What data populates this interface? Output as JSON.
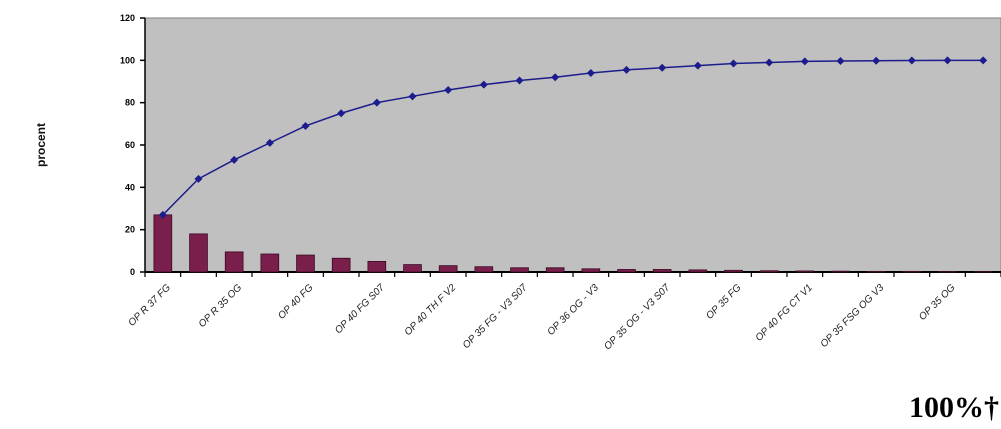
{
  "chart_data": {
    "type": "bar",
    "title": "",
    "ylabel": "procent",
    "xlabel": "",
    "ylim": [
      0,
      120
    ],
    "yticks": [
      0,
      20,
      40,
      60,
      80,
      100,
      120
    ],
    "grid": false,
    "categories": [
      "OP R 37 FG",
      "",
      "OP R 35 OG",
      "",
      "OP 40 FG",
      "",
      "OP 40 FG S07",
      "",
      "OP 40 TH F V2",
      "",
      "OP 35 FG - V3 S07",
      "",
      "OP 36 OG - V3",
      "",
      "OP 35 OG - V3 S07",
      "",
      "OP 35 FG",
      "",
      "OP 40 FG CT V1",
      "",
      "OP 35 FSG OG V3",
      "",
      "OP 35 OG",
      ""
    ],
    "series": [
      {
        "type": "bar",
        "values": [
          27,
          18,
          9.5,
          8.5,
          8,
          6.5,
          5,
          3.5,
          3,
          2.5,
          2,
          2,
          1.5,
          1.2,
          1.2,
          1,
          0.8,
          0.6,
          0.5,
          0.4,
          0.3,
          0.3,
          0.2,
          0.2
        ],
        "color": "#7a1e4c"
      },
      {
        "type": "line",
        "values": [
          27,
          44,
          53,
          61,
          69,
          75,
          80,
          83,
          86,
          88.5,
          90.5,
          92,
          94,
          95.5,
          96.5,
          97.5,
          98.5,
          99,
          99.5,
          99.7,
          99.8,
          99.9,
          100,
          100
        ],
        "color": "#1c1c8c"
      }
    ],
    "colors": {
      "plot_bg": "#c0c0c0",
      "line": "#1c1c8c",
      "bar": "#7a1e4c"
    }
  },
  "footnote": "100%†"
}
